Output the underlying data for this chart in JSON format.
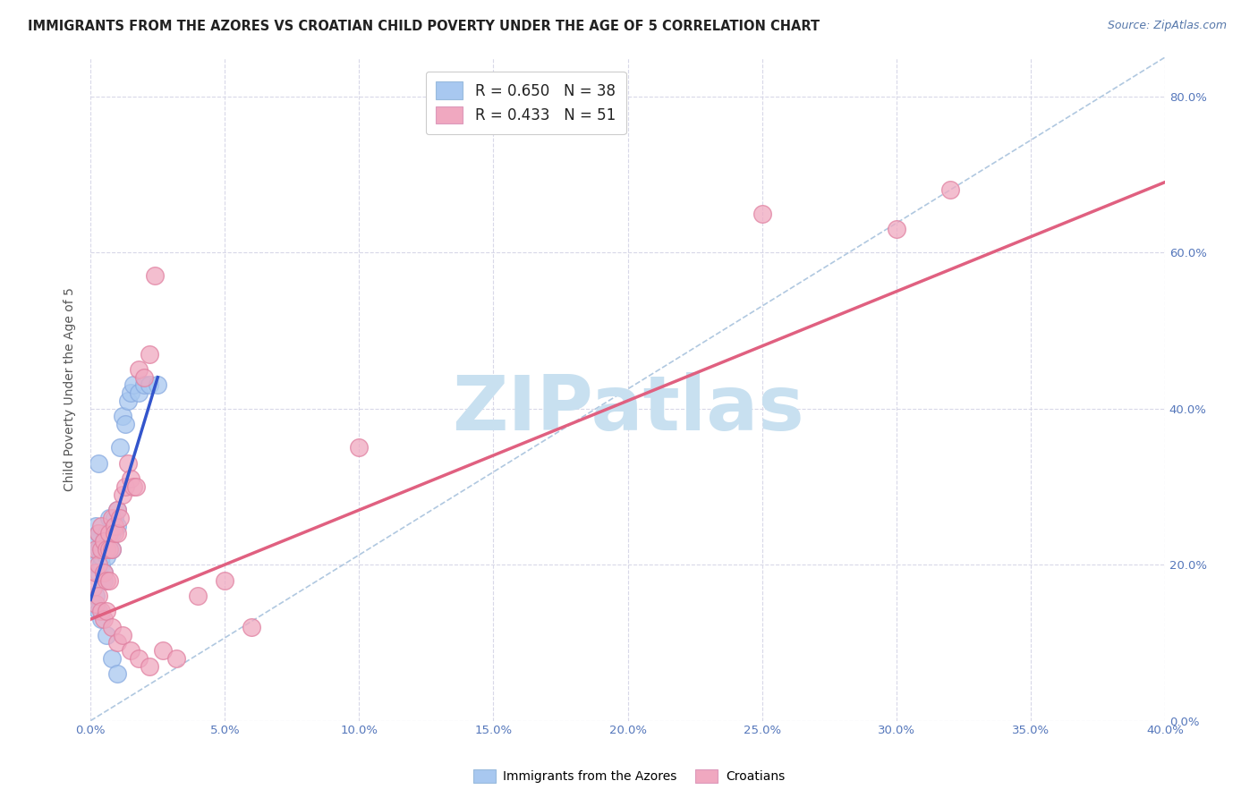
{
  "title": "IMMIGRANTS FROM THE AZORES VS CROATIAN CHILD POVERTY UNDER THE AGE OF 5 CORRELATION CHART",
  "source": "Source: ZipAtlas.com",
  "ylabel": "Child Poverty Under the Age of 5",
  "xlim": [
    0.0,
    0.4
  ],
  "ylim": [
    0.0,
    0.85
  ],
  "xticks": [
    0.0,
    0.05,
    0.1,
    0.15,
    0.2,
    0.25,
    0.3,
    0.35,
    0.4
  ],
  "yticks": [
    0.0,
    0.2,
    0.4,
    0.6,
    0.8
  ],
  "legend_line1": "R = 0.650   N = 38",
  "legend_line2": "R = 0.433   N = 51",
  "blue_color": "#a8c8f0",
  "pink_color": "#f0a8c0",
  "blue_line_color": "#3355cc",
  "pink_line_color": "#e06080",
  "diagonal_color": "#b0c8e0",
  "watermark_color": "#c8e0f0",
  "watermark_text": "ZIPatlas",
  "background_color": "#ffffff",
  "grid_color": "#d8d8e8",
  "tick_color": "#5577bb",
  "ylabel_color": "#555555",
  "blue_scatter_x": [
    0.001,
    0.002,
    0.002,
    0.003,
    0.003,
    0.003,
    0.004,
    0.004,
    0.005,
    0.005,
    0.005,
    0.006,
    0.006,
    0.007,
    0.007,
    0.008,
    0.008,
    0.009,
    0.01,
    0.01,
    0.011,
    0.012,
    0.013,
    0.014,
    0.015,
    0.016,
    0.018,
    0.02,
    0.022,
    0.025,
    0.001,
    0.002,
    0.003,
    0.004,
    0.006,
    0.008,
    0.01,
    0.003
  ],
  "blue_scatter_y": [
    0.23,
    0.25,
    0.2,
    0.19,
    0.22,
    0.24,
    0.2,
    0.21,
    0.23,
    0.18,
    0.19,
    0.24,
    0.21,
    0.23,
    0.26,
    0.24,
    0.22,
    0.26,
    0.27,
    0.25,
    0.35,
    0.39,
    0.38,
    0.41,
    0.42,
    0.43,
    0.42,
    0.43,
    0.43,
    0.43,
    0.15,
    0.16,
    0.14,
    0.13,
    0.11,
    0.08,
    0.06,
    0.33
  ],
  "pink_scatter_x": [
    0.001,
    0.002,
    0.002,
    0.003,
    0.003,
    0.004,
    0.004,
    0.005,
    0.005,
    0.006,
    0.006,
    0.007,
    0.007,
    0.008,
    0.008,
    0.009,
    0.009,
    0.01,
    0.01,
    0.011,
    0.012,
    0.013,
    0.014,
    0.015,
    0.016,
    0.017,
    0.018,
    0.02,
    0.022,
    0.024,
    0.002,
    0.003,
    0.004,
    0.005,
    0.006,
    0.007,
    0.008,
    0.01,
    0.012,
    0.015,
    0.018,
    0.022,
    0.027,
    0.032,
    0.04,
    0.05,
    0.06,
    0.1,
    0.25,
    0.3,
    0.32
  ],
  "pink_scatter_y": [
    0.17,
    0.19,
    0.22,
    0.2,
    0.24,
    0.22,
    0.25,
    0.23,
    0.19,
    0.22,
    0.18,
    0.24,
    0.22,
    0.22,
    0.26,
    0.25,
    0.24,
    0.27,
    0.24,
    0.26,
    0.29,
    0.3,
    0.33,
    0.31,
    0.3,
    0.3,
    0.45,
    0.44,
    0.47,
    0.57,
    0.15,
    0.16,
    0.14,
    0.13,
    0.14,
    0.18,
    0.12,
    0.1,
    0.11,
    0.09,
    0.08,
    0.07,
    0.09,
    0.08,
    0.16,
    0.18,
    0.12,
    0.35,
    0.65,
    0.63,
    0.68
  ],
  "blue_line_x": [
    0.0,
    0.025
  ],
  "blue_line_y": [
    0.155,
    0.44
  ],
  "pink_line_x": [
    0.0,
    0.4
  ],
  "pink_line_y": [
    0.13,
    0.69
  ],
  "diag_line_x": [
    0.0,
    0.4
  ],
  "diag_line_y": [
    0.0,
    0.85
  ]
}
